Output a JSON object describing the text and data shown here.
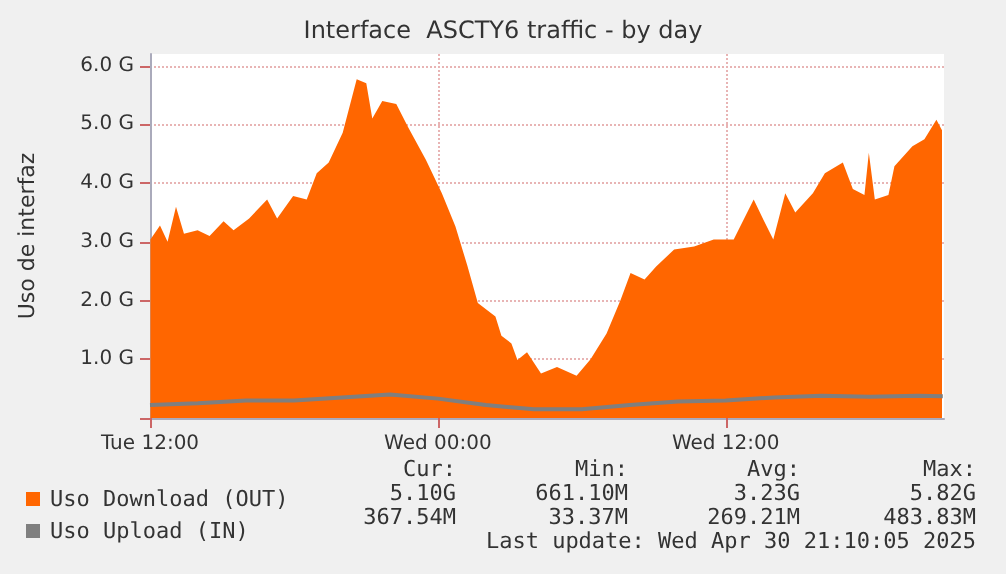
{
  "chart_data": {
    "type": "area",
    "title": "Interface  ASCTY6 traffic - by day",
    "ylabel": "Uso de interfaz",
    "xlim": [
      "2025-04-29T12:00",
      "2025-04-30T21:06"
    ],
    "xticks": [
      {
        "value": "2025-04-29T12:00",
        "label": "Tue 12:00"
      },
      {
        "value": "2025-04-30T00:00",
        "label": "Wed 00:00"
      },
      {
        "value": "2025-04-30T12:00",
        "label": "Wed 12:00"
      }
    ],
    "ylim": [
      0,
      6.2
    ],
    "yticks": [
      {
        "value": 0,
        "label": null
      },
      {
        "value": 1,
        "label": "1.0 G"
      },
      {
        "value": 2,
        "label": "2.0 G"
      },
      {
        "value": 3,
        "label": "3.0 G"
      },
      {
        "value": 4,
        "label": "4.0 G"
      },
      {
        "value": 5,
        "label": "5.0 G"
      },
      {
        "value": 6,
        "label": "6.0 G"
      }
    ],
    "grid": true,
    "legend": "bottom left",
    "series": [
      {
        "name": "Uso Download (OUT)",
        "color": "#ff6600",
        "x": [
          "2025-04-29T12:01",
          "2025-04-29T12:25",
          "2025-04-29T12:44",
          "2025-04-29T13:05",
          "2025-04-29T13:25",
          "2025-04-29T13:59",
          "2025-04-29T14:29",
          "2025-04-29T15:04",
          "2025-04-29T15:29",
          "2025-04-29T16:08",
          "2025-04-29T16:53",
          "2025-04-29T17:18",
          "2025-04-29T17:58",
          "2025-04-29T18:32",
          "2025-04-29T18:57",
          "2025-04-29T19:27",
          "2025-04-29T20:02",
          "2025-04-29T20:37",
          "2025-04-29T21:01",
          "2025-04-29T21:16",
          "2025-04-29T21:41",
          "2025-04-29T22:16",
          "2025-04-29T22:46",
          "2025-04-29T23:30",
          "2025-04-30T00:10",
          "2025-04-30T00:44",
          "2025-04-30T01:14",
          "2025-04-30T01:40",
          "2025-04-30T02:24",
          "2025-04-30T02:39",
          "2025-04-30T03:04",
          "2025-04-30T03:19",
          "2025-04-30T03:43",
          "2025-04-30T04:18",
          "2025-04-30T04:58",
          "2025-04-30T05:47",
          "2025-04-30T06:22",
          "2025-04-30T07:02",
          "2025-04-30T07:37",
          "2025-04-30T08:02",
          "2025-04-30T08:37",
          "2025-04-30T09:06",
          "2025-04-30T09:51",
          "2025-04-30T10:41",
          "2025-04-30T11:30",
          "2025-04-30T12:20",
          "2025-04-30T13:10",
          "2025-04-30T13:34",
          "2025-04-30T13:59",
          "2025-04-30T14:29",
          "2025-04-30T14:54",
          "2025-04-30T15:38",
          "2025-04-30T16:08",
          "2025-04-30T16:53",
          "2025-04-30T17:18",
          "2025-04-30T17:47",
          "2025-04-30T17:58",
          "2025-04-30T18:13",
          "2025-04-30T18:47",
          "2025-04-30T19:02",
          "2025-04-30T19:47",
          "2025-04-30T20:17",
          "2025-04-30T20:47",
          "2025-04-30T21:01"
        ],
        "values": [
          3.04,
          3.28,
          3.0,
          3.6,
          3.14,
          3.2,
          3.1,
          3.35,
          3.2,
          3.4,
          3.72,
          3.4,
          3.78,
          3.72,
          4.17,
          4.35,
          4.86,
          5.77,
          5.7,
          5.1,
          5.4,
          5.35,
          4.95,
          4.4,
          3.83,
          3.26,
          2.59,
          1.96,
          1.73,
          1.4,
          1.27,
          0.99,
          1.12,
          0.76,
          0.87,
          0.72,
          1.0,
          1.44,
          2.01,
          2.47,
          2.36,
          2.58,
          2.87,
          2.92,
          3.04,
          3.04,
          3.72,
          3.38,
          3.04,
          3.83,
          3.5,
          3.83,
          4.17,
          4.35,
          3.9,
          3.8,
          4.52,
          3.72,
          3.8,
          4.29,
          4.63,
          4.75,
          5.08,
          4.9
        ]
      },
      {
        "name": "Uso Upload (IN)",
        "color": "#7f7f7f",
        "type": "line",
        "x": [
          "2025-04-29T12:00",
          "2025-04-29T14:00",
          "2025-04-29T16:00",
          "2025-04-29T18:00",
          "2025-04-29T20:00",
          "2025-04-29T22:00",
          "2025-04-30T00:00",
          "2025-04-30T02:00",
          "2025-04-30T04:00",
          "2025-04-30T06:00",
          "2025-04-30T08:00",
          "2025-04-30T10:00",
          "2025-04-30T12:00",
          "2025-04-30T14:00",
          "2025-04-30T16:00",
          "2025-04-30T18:00",
          "2025-04-30T20:00",
          "2025-04-30T21:03"
        ],
        "values": [
          0.22,
          0.25,
          0.3,
          0.3,
          0.35,
          0.4,
          0.33,
          0.22,
          0.15,
          0.15,
          0.22,
          0.28,
          0.3,
          0.35,
          0.38,
          0.36,
          0.38,
          0.37
        ]
      }
    ],
    "annotations": [
      "Cur:",
      "Min:",
      "Avg:",
      "Max:",
      "5.10G",
      "661.10M",
      "3.23G",
      "5.82G",
      "367.54M",
      "33.37M",
      "269.21M",
      "483.83M",
      "Last update: Wed Apr 30 21:10:05 2025"
    ]
  }
}
